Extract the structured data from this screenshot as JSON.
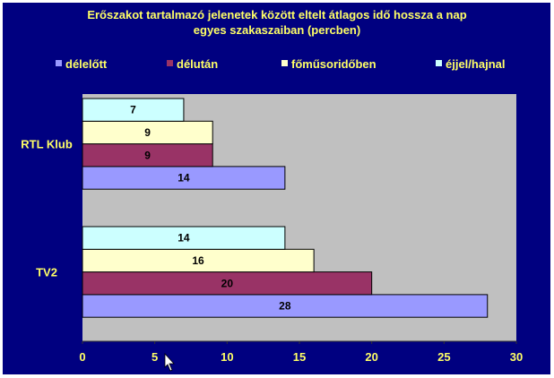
{
  "chart_data": {
    "type": "bar",
    "orientation": "horizontal",
    "title": "Erőszakot tartalmazó jelenetek között eltelt átlagos idő hossza a nap egyes szakaszaiban (percben)",
    "title_lines": [
      "Erőszakot tartalmazó jelenetek között eltelt átlagos idő hossza a nap",
      "egyes szakaszaiban (percben)"
    ],
    "categories": [
      "RTL Klub",
      "TV2"
    ],
    "series": [
      {
        "name": "délelőtt",
        "color": "#9999ff",
        "values": [
          14,
          28
        ]
      },
      {
        "name": "délután",
        "color": "#993366",
        "values": [
          9,
          20
        ]
      },
      {
        "name": "főműsoridőben",
        "color": "#ffffcc",
        "values": [
          9,
          16
        ]
      },
      {
        "name": "éjjel/hajnal",
        "color": "#ccffff",
        "values": [
          7,
          14
        ]
      }
    ],
    "xlim": [
      0,
      30
    ],
    "xticks": [
      0,
      5,
      10,
      15,
      20,
      25,
      30
    ],
    "legend": "top",
    "grid": false,
    "background": "#000080",
    "plot_background": "#c0c0c0",
    "text_color": "#ffff66"
  }
}
